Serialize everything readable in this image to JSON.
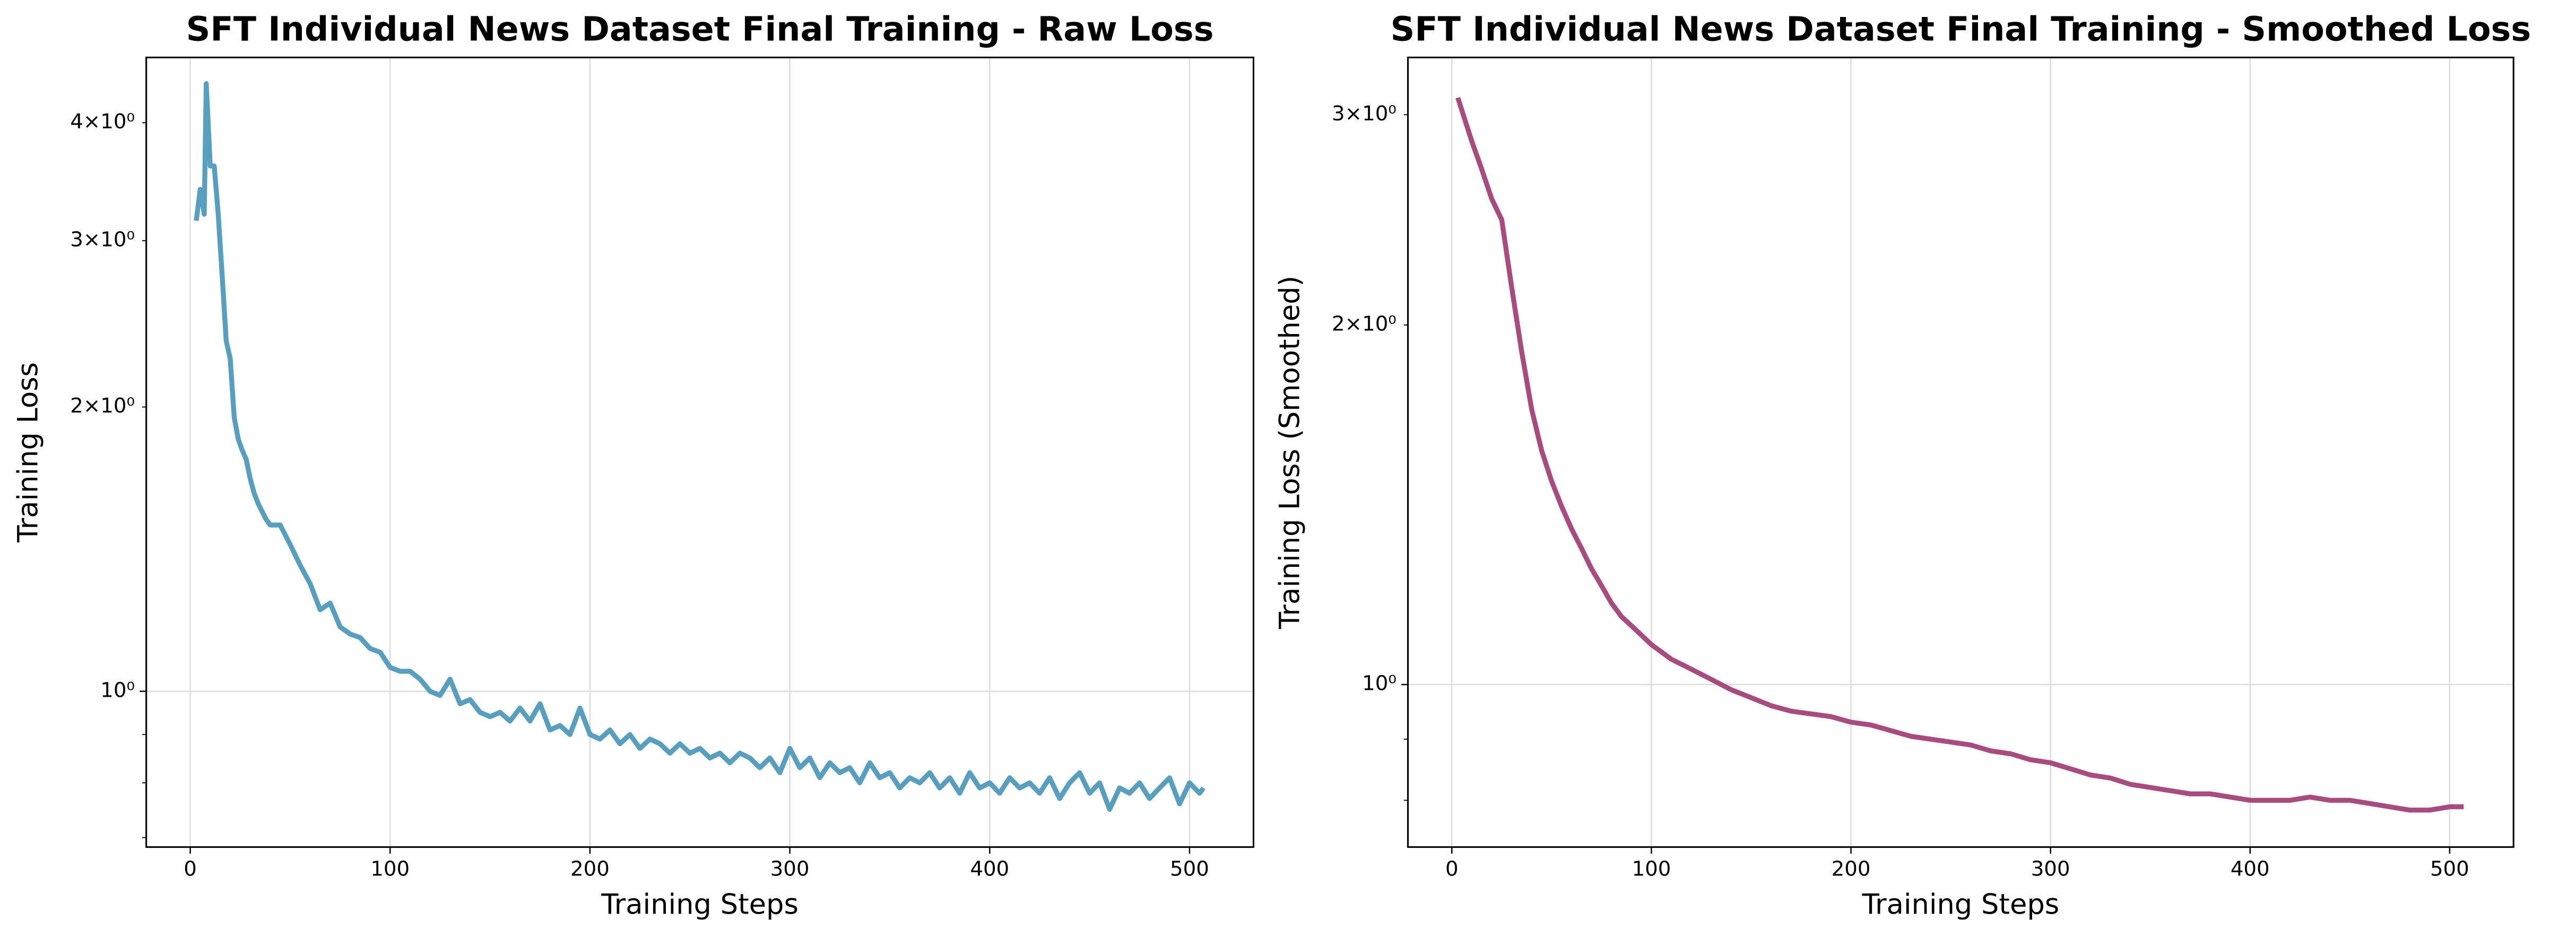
{
  "chart_data": [
    {
      "type": "line",
      "title": "SFT Individual News Dataset Final Training - Raw Loss",
      "xlabel": "Training Steps",
      "ylabel": "Training Loss",
      "color": "#579ebf",
      "log_y": true,
      "grid": true,
      "xlim": [
        -22,
        532
      ],
      "xticks": [
        0,
        100,
        200,
        300,
        400,
        500
      ],
      "ylim": [
        0.684,
        4.69
      ],
      "yticks": [
        {
          "value": 1,
          "label": "10⁰"
        }
      ],
      "y_minor_ticks": [
        {
          "value": 2,
          "label": "2×10⁰"
        },
        {
          "value": 3,
          "label": "3×10⁰"
        },
        {
          "value": 4,
          "label": "4×10⁰"
        }
      ],
      "y_minor_ticks_unlabeled": [
        0.7,
        0.8,
        0.9
      ],
      "x": [
        3,
        5,
        7,
        8,
        10,
        12,
        14,
        16,
        18,
        20,
        22,
        24,
        26,
        28,
        30,
        32,
        34,
        36,
        38,
        40,
        45,
        50,
        55,
        60,
        65,
        70,
        75,
        80,
        85,
        90,
        95,
        100,
        105,
        110,
        115,
        120,
        125,
        130,
        135,
        140,
        145,
        150,
        155,
        160,
        165,
        170,
        175,
        180,
        185,
        190,
        195,
        200,
        205,
        210,
        215,
        220,
        225,
        230,
        235,
        240,
        245,
        250,
        255,
        260,
        265,
        270,
        275,
        280,
        285,
        290,
        295,
        300,
        305,
        310,
        315,
        320,
        325,
        330,
        335,
        340,
        345,
        350,
        355,
        360,
        365,
        370,
        375,
        380,
        385,
        390,
        395,
        400,
        405,
        410,
        415,
        420,
        425,
        430,
        435,
        440,
        445,
        450,
        455,
        460,
        465,
        470,
        475,
        480,
        485,
        490,
        495,
        500,
        505,
        507
      ],
      "values": [
        3.15,
        3.4,
        3.2,
        4.4,
        3.6,
        3.6,
        3.2,
        2.75,
        2.35,
        2.25,
        1.95,
        1.85,
        1.8,
        1.76,
        1.68,
        1.62,
        1.58,
        1.55,
        1.52,
        1.5,
        1.5,
        1.43,
        1.36,
        1.3,
        1.22,
        1.24,
        1.17,
        1.15,
        1.14,
        1.11,
        1.1,
        1.06,
        1.05,
        1.05,
        1.03,
        1.0,
        0.99,
        1.03,
        0.97,
        0.98,
        0.95,
        0.94,
        0.95,
        0.93,
        0.96,
        0.93,
        0.97,
        0.91,
        0.92,
        0.9,
        0.96,
        0.9,
        0.89,
        0.91,
        0.88,
        0.9,
        0.87,
        0.89,
        0.88,
        0.86,
        0.88,
        0.86,
        0.87,
        0.85,
        0.86,
        0.84,
        0.86,
        0.85,
        0.83,
        0.85,
        0.82,
        0.87,
        0.83,
        0.85,
        0.81,
        0.84,
        0.82,
        0.83,
        0.8,
        0.84,
        0.81,
        0.82,
        0.79,
        0.81,
        0.8,
        0.82,
        0.79,
        0.81,
        0.78,
        0.82,
        0.79,
        0.8,
        0.78,
        0.81,
        0.79,
        0.8,
        0.78,
        0.81,
        0.77,
        0.8,
        0.82,
        0.78,
        0.8,
        0.75,
        0.79,
        0.78,
        0.8,
        0.77,
        0.79,
        0.81,
        0.76,
        0.8,
        0.78,
        0.79
      ]
    },
    {
      "type": "line",
      "title": "SFT Individual News Dataset Final Training - Smoothed Loss",
      "xlabel": "Training Steps",
      "ylabel": "Training Loss (Smoothed)",
      "color": "#a84c7f",
      "log_y": true,
      "grid": true,
      "xlim": [
        -22,
        532
      ],
      "xticks": [
        0,
        100,
        200,
        300,
        400,
        500
      ],
      "ylim": [
        0.731,
        3.35
      ],
      "yticks": [
        {
          "value": 1,
          "label": "10⁰"
        }
      ],
      "y_minor_ticks": [
        {
          "value": 2,
          "label": "2×10⁰"
        },
        {
          "value": 3,
          "label": "3×10⁰"
        }
      ],
      "y_minor_ticks_unlabeled": [
        0.8,
        0.9
      ],
      "x": [
        3,
        10,
        15,
        20,
        25,
        30,
        35,
        40,
        45,
        50,
        55,
        60,
        65,
        70,
        75,
        80,
        85,
        90,
        95,
        100,
        110,
        120,
        130,
        140,
        150,
        160,
        170,
        180,
        190,
        200,
        210,
        220,
        230,
        240,
        250,
        260,
        270,
        280,
        290,
        300,
        310,
        320,
        330,
        340,
        350,
        360,
        370,
        380,
        390,
        400,
        410,
        420,
        430,
        440,
        450,
        460,
        470,
        480,
        490,
        500,
        507
      ],
      "values": [
        3.1,
        2.85,
        2.7,
        2.55,
        2.45,
        2.15,
        1.9,
        1.7,
        1.57,
        1.48,
        1.41,
        1.35,
        1.3,
        1.25,
        1.21,
        1.17,
        1.14,
        1.12,
        1.1,
        1.08,
        1.05,
        1.03,
        1.01,
        0.99,
        0.975,
        0.96,
        0.95,
        0.945,
        0.94,
        0.93,
        0.925,
        0.915,
        0.905,
        0.9,
        0.895,
        0.89,
        0.88,
        0.875,
        0.865,
        0.86,
        0.85,
        0.84,
        0.835,
        0.825,
        0.82,
        0.815,
        0.81,
        0.81,
        0.805,
        0.8,
        0.8,
        0.8,
        0.805,
        0.8,
        0.8,
        0.795,
        0.79,
        0.785,
        0.785,
        0.79,
        0.79
      ]
    }
  ]
}
